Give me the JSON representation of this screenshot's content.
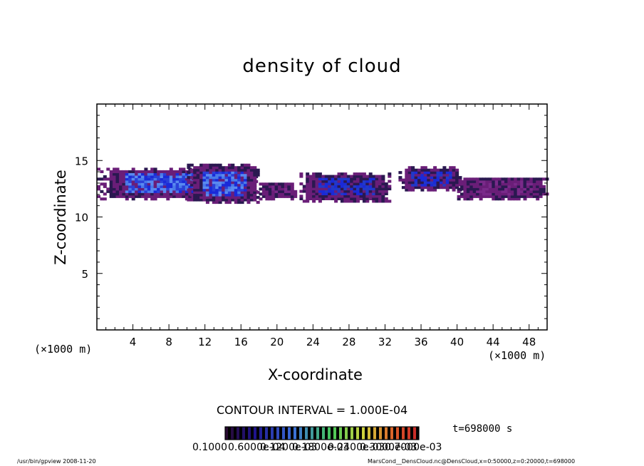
{
  "chart_data": {
    "type": "heatmap",
    "title": "density of cloud",
    "xlabel": "X-coordinate",
    "ylabel": "Z-coordinate",
    "xunit_left": "(×1000 m)",
    "xunit_right": "(×1000 m)",
    "xlim": [
      0,
      50
    ],
    "ylim": [
      0,
      20
    ],
    "xticks": [
      4,
      8,
      12,
      16,
      20,
      24,
      28,
      32,
      36,
      40,
      44,
      48
    ],
    "yticks": [
      5,
      10,
      15
    ],
    "contour_interval_text": "CONTOUR INTERVAL = 1.000E-04",
    "time_text": "t=698000 s",
    "colorbar_labels": [
      "0.1000",
      "0.6000e-04",
      "0.1200e-03",
      "0.1800e-03",
      "0.2400e-03",
      "0.3000e-03",
      "0.7000e-03"
    ],
    "cloud_regions": [
      {
        "x": [
          0,
          17.5
        ],
        "z": [
          11.5,
          14.2
        ],
        "intensity": "high"
      },
      {
        "x": [
          10,
          18
        ],
        "z": [
          11.2,
          14.6
        ],
        "intensity": "high"
      },
      {
        "x": [
          18,
          22
        ],
        "z": [
          11.5,
          13.0
        ],
        "intensity": "low"
      },
      {
        "x": [
          22.5,
          32.5
        ],
        "z": [
          11.3,
          13.8
        ],
        "intensity": "medium"
      },
      {
        "x": [
          33.5,
          40.5
        ],
        "z": [
          12.3,
          14.4
        ],
        "intensity": "medium"
      },
      {
        "x": [
          40,
          50
        ],
        "z": [
          11.5,
          13.4
        ],
        "intensity": "low"
      }
    ],
    "colors": {
      "low": "#6a1e78",
      "mid": "#1a2ad8",
      "high": "#4a7ae8",
      "dark": "#2a1850"
    }
  },
  "footer_left": "/usr/bin/gpview   2008-11-20",
  "footer_right": "MarsCond__DensCloud.nc@DensCloud,x=0:50000,z=0:20000,t=698000"
}
